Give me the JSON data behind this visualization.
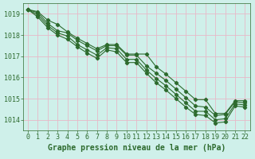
{
  "series": [
    {
      "x": [
        0,
        1,
        2,
        3,
        4,
        5,
        6,
        7,
        8,
        9,
        10,
        11,
        12,
        13,
        14,
        15,
        16,
        17,
        18,
        19,
        20,
        21,
        22
      ],
      "y": [
        1019.2,
        1019.1,
        1018.7,
        1018.5,
        1018.15,
        1017.85,
        1017.6,
        1017.35,
        1017.55,
        1017.55,
        1017.1,
        1017.1,
        1017.1,
        1016.5,
        1016.15,
        1015.75,
        1015.35,
        1014.95,
        1014.95,
        1014.3,
        1014.3,
        1014.9,
        1014.9
      ]
    },
    {
      "x": [
        0,
        1,
        2,
        3,
        4,
        5,
        6,
        7,
        8,
        9,
        10,
        11,
        12,
        13,
        14,
        15,
        16,
        17,
        18,
        19,
        20,
        21,
        22
      ],
      "y": [
        1019.2,
        1019.05,
        1018.55,
        1018.2,
        1018.1,
        1017.75,
        1017.5,
        1017.25,
        1017.5,
        1017.5,
        1017.05,
        1017.05,
        1016.55,
        1016.2,
        1015.85,
        1015.45,
        1015.05,
        1014.65,
        1014.6,
        1014.2,
        1014.25,
        1014.85,
        1014.8
      ]
    },
    {
      "x": [
        0,
        1,
        2,
        3,
        4,
        5,
        6,
        7,
        8,
        9,
        10,
        11,
        12,
        13,
        14,
        15,
        16,
        17,
        18,
        19,
        20,
        21,
        22
      ],
      "y": [
        1019.2,
        1018.95,
        1018.45,
        1018.1,
        1017.95,
        1017.55,
        1017.3,
        1017.05,
        1017.4,
        1017.35,
        1016.85,
        1016.85,
        1016.35,
        1015.95,
        1015.6,
        1015.2,
        1014.8,
        1014.4,
        1014.4,
        1014.0,
        1014.05,
        1014.75,
        1014.7
      ]
    },
    {
      "x": [
        0,
        1,
        2,
        3,
        4,
        5,
        6,
        7,
        8,
        9,
        10,
        11,
        12,
        13,
        14,
        15,
        16,
        17,
        18,
        19,
        20,
        21,
        22
      ],
      "y": [
        1019.2,
        1018.85,
        1018.35,
        1018.0,
        1017.8,
        1017.45,
        1017.15,
        1016.9,
        1017.3,
        1017.2,
        1016.7,
        1016.7,
        1016.2,
        1015.75,
        1015.4,
        1015.0,
        1014.6,
        1014.25,
        1014.2,
        1013.85,
        1013.9,
        1014.65,
        1014.6
      ]
    }
  ],
  "line_color": "#2d6a2d",
  "marker": "D",
  "marker_size": 2.2,
  "background_color": "#cff0ea",
  "grid_color": "#e8b8c8",
  "xlabel": "Graphe pression niveau de la mer (hPa)",
  "xlabel_color": "#2d6a2d",
  "xlabel_fontsize": 7,
  "tick_color": "#2d6a2d",
  "tick_fontsize": 6,
  "xlim": [
    -0.5,
    22.5
  ],
  "ylim": [
    1013.5,
    1019.5
  ],
  "yticks": [
    1014,
    1015,
    1016,
    1017,
    1018,
    1019
  ],
  "xticks": [
    0,
    1,
    2,
    3,
    4,
    5,
    6,
    7,
    8,
    9,
    10,
    11,
    12,
    13,
    14,
    15,
    16,
    17,
    18,
    19,
    20,
    21,
    22
  ]
}
